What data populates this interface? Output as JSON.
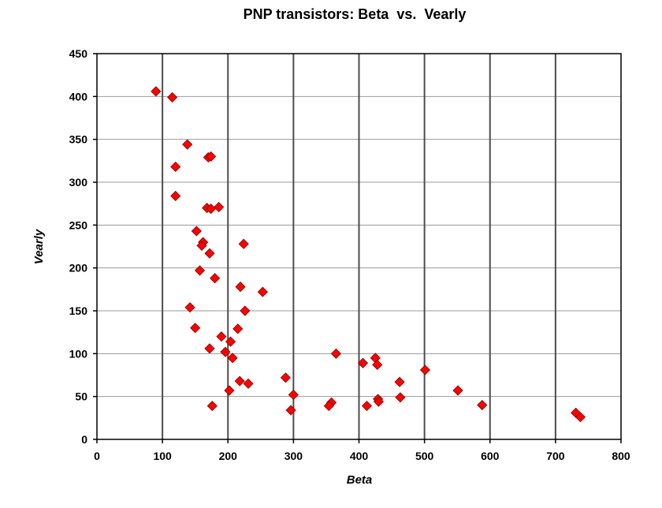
{
  "chart_data": {
    "type": "scatter",
    "title": "PNP transistors: Beta  vs.  Vearly",
    "xlabel": "Beta",
    "ylabel": "Vearly",
    "xlim": [
      0,
      800
    ],
    "ylim": [
      0,
      450
    ],
    "xticks": [
      0,
      100,
      200,
      300,
      400,
      500,
      600,
      700,
      800
    ],
    "yticks": [
      0,
      50,
      100,
      150,
      200,
      250,
      300,
      350,
      400,
      450
    ],
    "grid": {
      "x_major": true,
      "y_major": true
    },
    "legend": "none",
    "marker": {
      "shape": "diamond",
      "fill": "#ff0000",
      "stroke": "#7a0000"
    },
    "colors": {
      "vertical_grid": "#4d4d4d",
      "horizontal_grid": "#9a9a9a",
      "plot_border": "#000000"
    },
    "points": [
      [
        90,
        406
      ],
      [
        115,
        399
      ],
      [
        138,
        344
      ],
      [
        120,
        318
      ],
      [
        170,
        329
      ],
      [
        174,
        330
      ],
      [
        120,
        284
      ],
      [
        168,
        270
      ],
      [
        174,
        269
      ],
      [
        186,
        271
      ],
      [
        152,
        243
      ],
      [
        162,
        230
      ],
      [
        160,
        226
      ],
      [
        224,
        228
      ],
      [
        172,
        217
      ],
      [
        157,
        197
      ],
      [
        180,
        188
      ],
      [
        219,
        178
      ],
      [
        253,
        172
      ],
      [
        142,
        154
      ],
      [
        226,
        150
      ],
      [
        150,
        130
      ],
      [
        215,
        129
      ],
      [
        190,
        120
      ],
      [
        204,
        114
      ],
      [
        172,
        106
      ],
      [
        196,
        102
      ],
      [
        207,
        95
      ],
      [
        218,
        68
      ],
      [
        231,
        65
      ],
      [
        202,
        57
      ],
      [
        176,
        39
      ],
      [
        288,
        72
      ],
      [
        300,
        52
      ],
      [
        296,
        34
      ],
      [
        358,
        43
      ],
      [
        354,
        39
      ],
      [
        365,
        100
      ],
      [
        406,
        89
      ],
      [
        425,
        95
      ],
      [
        428,
        87
      ],
      [
        462,
        67
      ],
      [
        412,
        39
      ],
      [
        429,
        47
      ],
      [
        430,
        44
      ],
      [
        463,
        49
      ],
      [
        501,
        81
      ],
      [
        551,
        57
      ],
      [
        588,
        40
      ],
      [
        731,
        31
      ],
      [
        738,
        26
      ]
    ]
  }
}
